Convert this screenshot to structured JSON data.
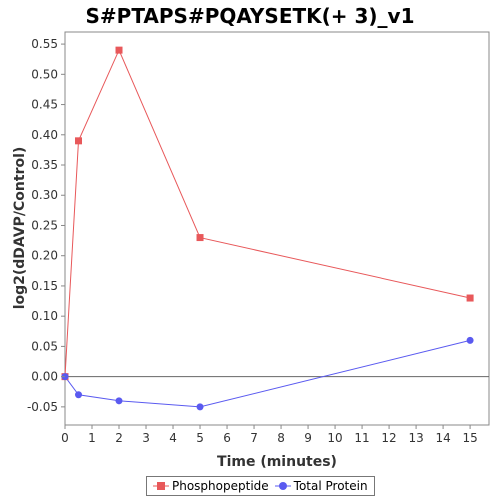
{
  "chart_data": {
    "type": "line",
    "title": "S#PTAPS#PQAYSETK(+ 3)_v1",
    "xlabel": "Time (minutes)",
    "ylabel": "log2(dDAVP/Control)",
    "xlim": [
      0,
      15.7
    ],
    "ylim": [
      -0.08,
      0.57
    ],
    "x_ticks": [
      0,
      1,
      2,
      3,
      4,
      5,
      6,
      7,
      8,
      9,
      10,
      11,
      12,
      13,
      14,
      15
    ],
    "y_ticks": [
      -0.05,
      0.0,
      0.05,
      0.1,
      0.15,
      0.2,
      0.25,
      0.3,
      0.35,
      0.4,
      0.45,
      0.5,
      0.55
    ],
    "y_tick_labels": [
      "-0.05",
      "0.00",
      "0.05",
      "0.10",
      "0.15",
      "0.20",
      "0.25",
      "0.30",
      "0.35",
      "0.40",
      "0.45",
      "0.50",
      "0.55"
    ],
    "zero_line": true,
    "grid": false,
    "legend_position": "bottom-center",
    "series": [
      {
        "name": "Phosphopeptide",
        "color": "#e8585a",
        "marker": "square",
        "x": [
          0,
          0.5,
          2,
          5,
          15
        ],
        "y": [
          0.0,
          0.39,
          0.54,
          0.23,
          0.13
        ]
      },
      {
        "name": "Total Protein",
        "color": "#5a5af0",
        "marker": "circle",
        "x": [
          0,
          0.5,
          2,
          5,
          15
        ],
        "y": [
          0.0,
          -0.03,
          -0.04,
          -0.05,
          0.06
        ]
      }
    ]
  }
}
